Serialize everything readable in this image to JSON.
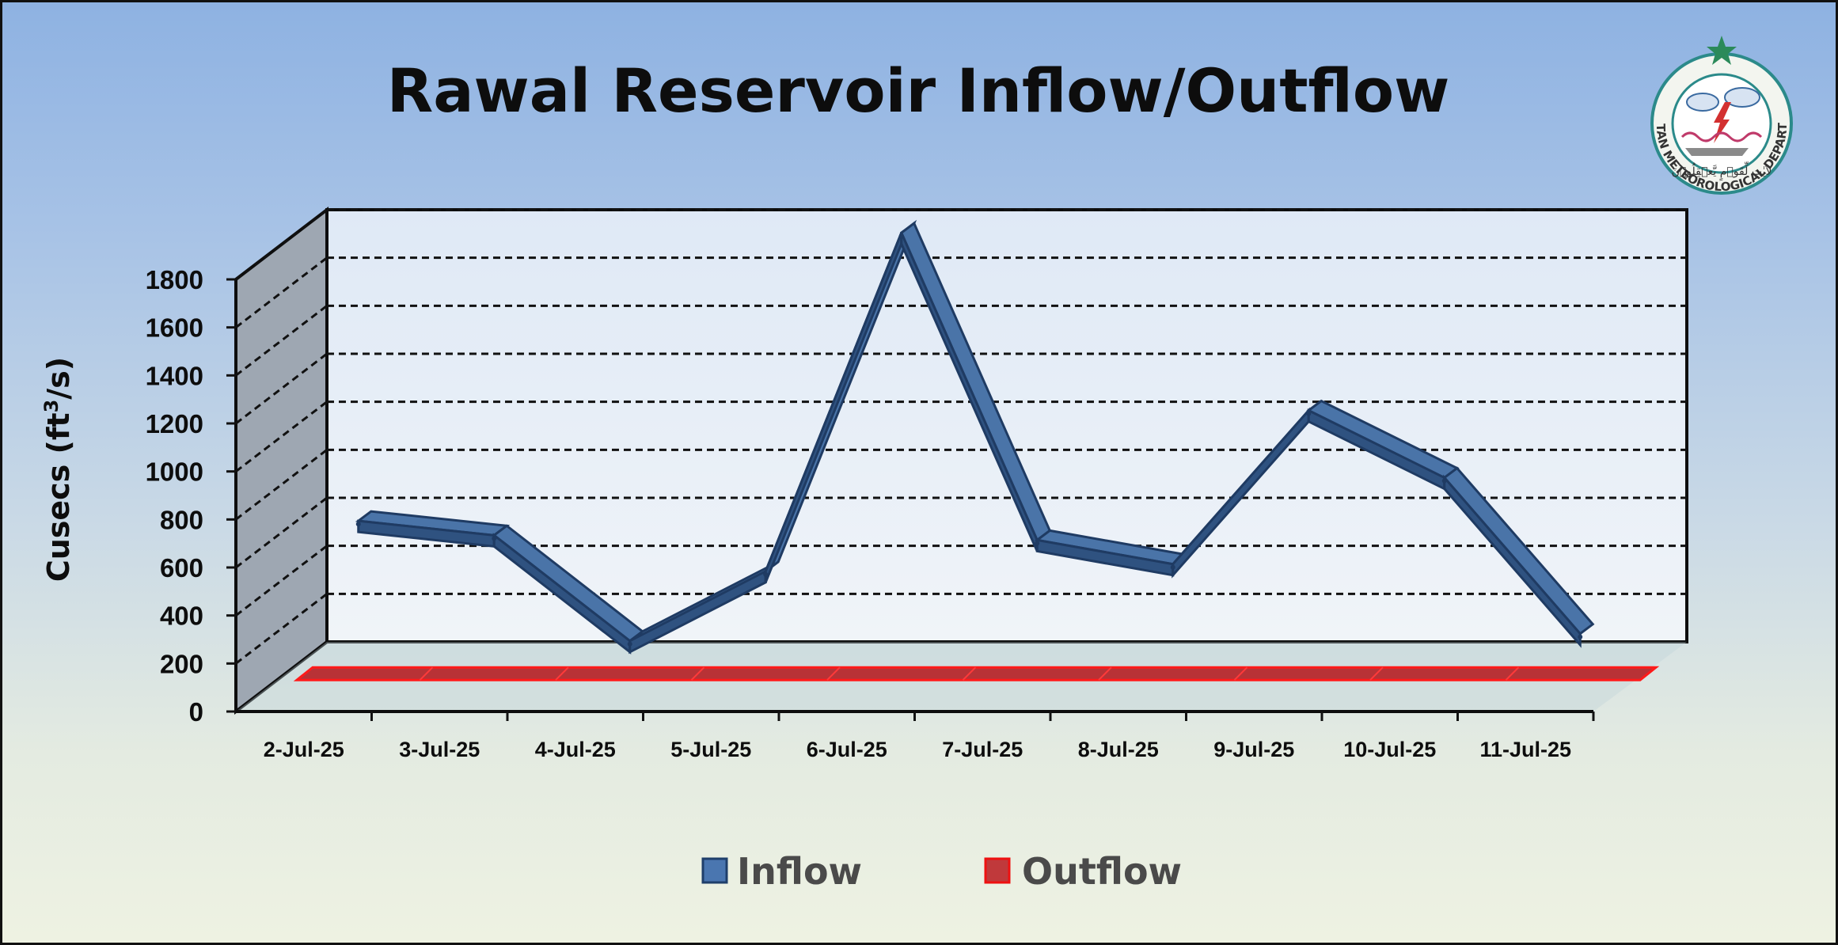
{
  "logo": {
    "text": "PAKISTAN METEOROLOGICAL DEPARTMENT",
    "motto": "لأيٰتٍ لِّقَوۡمٍ يَّعۡقِلُوۡنَ",
    "ring_color": "#2b8a8a",
    "star_color": "#2b8a5a"
  },
  "chart_data": {
    "type": "line",
    "title": "Rawal Reservoir Inflow/Outflow",
    "ylabel_main": "Cusecs (ft",
    "ylabel_sup": "3",
    "ylabel_end": "/s)",
    "xlabel": "",
    "ylim": [
      0,
      1800
    ],
    "yticks": [
      0,
      200,
      400,
      600,
      800,
      1000,
      1200,
      1400,
      1600,
      1800
    ],
    "categories": [
      "2-Jul-25",
      "3-Jul-25",
      "4-Jul-25",
      "5-Jul-25",
      "6-Jul-25",
      "7-Jul-25",
      "8-Jul-25",
      "9-Jul-25",
      "10-Jul-25",
      "11-Jul-25"
    ],
    "series": [
      {
        "name": "Inflow",
        "color": "#3a5f91",
        "values": [
          620,
          560,
          120,
          410,
          1820,
          540,
          440,
          1080,
          800,
          150
        ]
      },
      {
        "name": "Outflow",
        "color": "#c0393b",
        "values": [
          0,
          0,
          0,
          0,
          0,
          0,
          0,
          0,
          0,
          0
        ]
      }
    ],
    "grid": true,
    "legend_position": "bottom"
  }
}
